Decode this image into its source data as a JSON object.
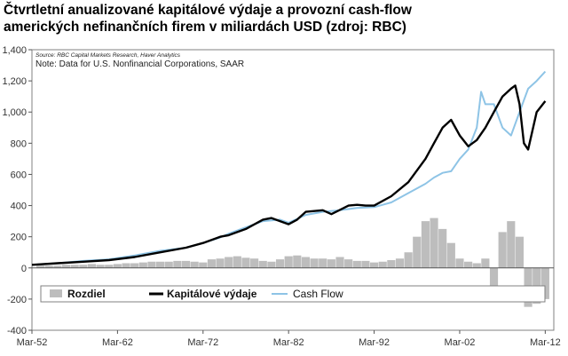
{
  "title": {
    "line1": "Čtvrtletní anualizované kapitálové výdaje a provozní cash-flow",
    "line2": "amerických nefinančních firem v miliardách USD (zdroj: RBC)"
  },
  "annotations": {
    "source": "Source: RBC Capital Markets Research, Haver Analytics",
    "note": "Note: Data for U.S. Nonfinancial Corporations, SAAR"
  },
  "colors": {
    "capex": "#000000",
    "cashflow": "#8ec4e6",
    "diff": "#bdbdbd",
    "axis": "#555555"
  },
  "chart_data": {
    "type": "line",
    "title": "Čtvrtletní anualizované kapitálové výdaje a provozní cash-flow amerických nefinančních firem v miliardách USD (zdroj: RBC)",
    "xlabel": "",
    "ylabel": "",
    "x_unit": "year",
    "xlim": [
      1952,
      2013
    ],
    "ylim": [
      -400,
      1400
    ],
    "y_ticks": [
      -400,
      -200,
      0,
      200,
      400,
      600,
      800,
      1000,
      1200,
      1400
    ],
    "y_tick_labels": [
      "-400",
      "-200",
      "0",
      "200",
      "400",
      "600",
      "800",
      "1,000",
      "1,200",
      "1,400"
    ],
    "x_ticks": [
      1952,
      1962,
      1972,
      1982,
      1992,
      2002,
      2012
    ],
    "x_tick_labels": [
      "Mar-52",
      "Mar-62",
      "Mar-72",
      "Mar-82",
      "Mar-92",
      "Mar-02",
      "Mar-12"
    ],
    "grid": false,
    "legend": {
      "position": "bottom-inside",
      "entries": [
        "Rozdiel",
        "Kapitálové výdaje",
        "Cash Flow"
      ]
    },
    "series": [
      {
        "name": "Kapitálové výdaje",
        "style": "line",
        "x": [
          1952,
          1955,
          1958,
          1961,
          1964,
          1967,
          1970,
          1972,
          1974,
          1975,
          1977,
          1979,
          1980,
          1981,
          1982,
          1983,
          1984,
          1986,
          1987,
          1989,
          1990,
          1991,
          1992,
          1994,
          1996,
          1998,
          1999,
          2000,
          2001,
          2002,
          2003,
          2004,
          2005,
          2006,
          2007,
          2008,
          2008.5,
          2009,
          2009.5,
          2010,
          2011,
          2012
        ],
        "y": [
          20,
          30,
          40,
          50,
          70,
          100,
          130,
          160,
          200,
          210,
          250,
          310,
          320,
          300,
          280,
          310,
          360,
          370,
          345,
          400,
          405,
          400,
          400,
          460,
          550,
          700,
          800,
          900,
          950,
          850,
          780,
          820,
          900,
          1000,
          1100,
          1150,
          1170,
          1050,
          800,
          760,
          1000,
          1070
        ]
      },
      {
        "name": "Cash Flow",
        "style": "line",
        "x": [
          1952,
          1955,
          1958,
          1961,
          1964,
          1967,
          1970,
          1972,
          1974,
          1975,
          1977,
          1979,
          1980,
          1981,
          1982,
          1984,
          1986,
          1988,
          1990,
          1992,
          1994,
          1996,
          1998,
          1999,
          2000,
          2001,
          2002,
          2003,
          2004,
          2004.5,
          2005,
          2006,
          2007,
          2008,
          2009,
          2010,
          2011,
          2012
        ],
        "y": [
          20,
          30,
          45,
          55,
          80,
          110,
          130,
          160,
          195,
          220,
          260,
          300,
          305,
          310,
          290,
          340,
          360,
          370,
          385,
          390,
          420,
          480,
          540,
          580,
          610,
          620,
          700,
          760,
          900,
          1130,
          1050,
          1050,
          900,
          850,
          1000,
          1150,
          1200,
          1260
        ]
      },
      {
        "name": "Rozdiel",
        "style": "bar",
        "x": [
          1953,
          1954,
          1955,
          1956,
          1957,
          1958,
          1959,
          1960,
          1961,
          1962,
          1963,
          1964,
          1965,
          1966,
          1967,
          1968,
          1969,
          1970,
          1971,
          1972,
          1973,
          1974,
          1975,
          1976,
          1977,
          1978,
          1979,
          1980,
          1981,
          1982,
          1983,
          1984,
          1985,
          1986,
          1987,
          1988,
          1989,
          1990,
          1991,
          1992,
          1993,
          1994,
          1995,
          1996,
          1997,
          1998,
          1999,
          2000,
          2001,
          2002,
          2003,
          2004,
          2005,
          2006,
          2007,
          2008,
          2009,
          2010,
          2011,
          2012
        ],
        "y": [
          15,
          15,
          15,
          20,
          20,
          20,
          25,
          20,
          20,
          25,
          30,
          30,
          35,
          40,
          40,
          40,
          45,
          45,
          40,
          35,
          55,
          60,
          70,
          75,
          65,
          60,
          45,
          40,
          55,
          75,
          80,
          70,
          60,
          60,
          55,
          70,
          55,
          45,
          45,
          35,
          40,
          50,
          60,
          100,
          200,
          300,
          320,
          250,
          160,
          60,
          40,
          30,
          60,
          -150,
          230,
          300,
          200,
          -250,
          -230,
          -200
        ]
      }
    ]
  }
}
